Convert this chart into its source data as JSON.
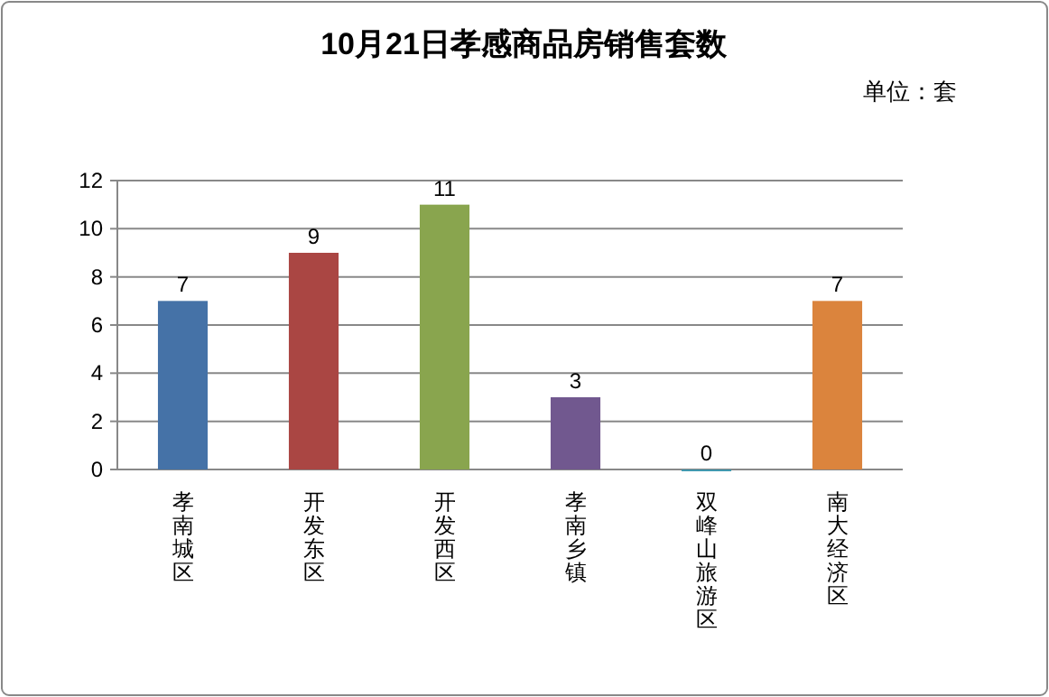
{
  "chart_data": {
    "type": "bar",
    "title": "10月21日孝感商品房销售套数",
    "annotations": [
      "单位：套"
    ],
    "categories": [
      "孝南城区",
      "开发东区",
      "开发西区",
      "孝南乡镇",
      "双峰山旅游区",
      "南大经济区"
    ],
    "values": [
      7,
      9,
      11,
      3,
      0,
      7
    ],
    "colors": [
      "#4572a7",
      "#aa4643",
      "#89a54e",
      "#71588f",
      "#4198af",
      "#db843d"
    ],
    "ylim": [
      0,
      12
    ],
    "yticks": [
      0,
      2,
      4,
      6,
      8,
      10,
      12
    ],
    "grid": "y",
    "data_labels": true
  }
}
